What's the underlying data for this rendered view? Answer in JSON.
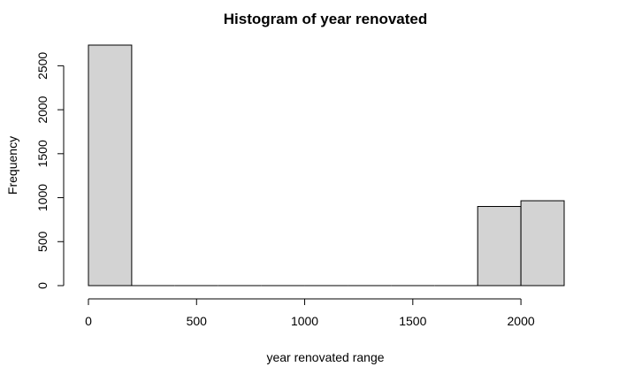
{
  "chart_data": {
    "type": "bar",
    "title": "Histogram of year renovated",
    "xlabel": "year renovated range",
    "ylabel": "Frequency",
    "bins": [
      {
        "start": 0,
        "end": 200,
        "count": 2735
      },
      {
        "start": 200,
        "end": 400,
        "count": 0
      },
      {
        "start": 400,
        "end": 600,
        "count": 0
      },
      {
        "start": 600,
        "end": 800,
        "count": 0
      },
      {
        "start": 800,
        "end": 1000,
        "count": 0
      },
      {
        "start": 1000,
        "end": 1200,
        "count": 0
      },
      {
        "start": 1200,
        "end": 1400,
        "count": 0
      },
      {
        "start": 1400,
        "end": 1600,
        "count": 0
      },
      {
        "start": 1600,
        "end": 1800,
        "count": 0
      },
      {
        "start": 1800,
        "end": 2000,
        "count": 900
      },
      {
        "start": 2000,
        "end": 2200,
        "count": 965
      }
    ],
    "xticks": [
      0,
      500,
      1000,
      1500,
      2000
    ],
    "yticks": [
      0,
      500,
      1000,
      1500,
      2000,
      2500
    ],
    "xlim": [
      0,
      2200
    ],
    "ylim": [
      0,
      2735
    ],
    "bar_color": "#d3d3d3",
    "grid": false
  }
}
